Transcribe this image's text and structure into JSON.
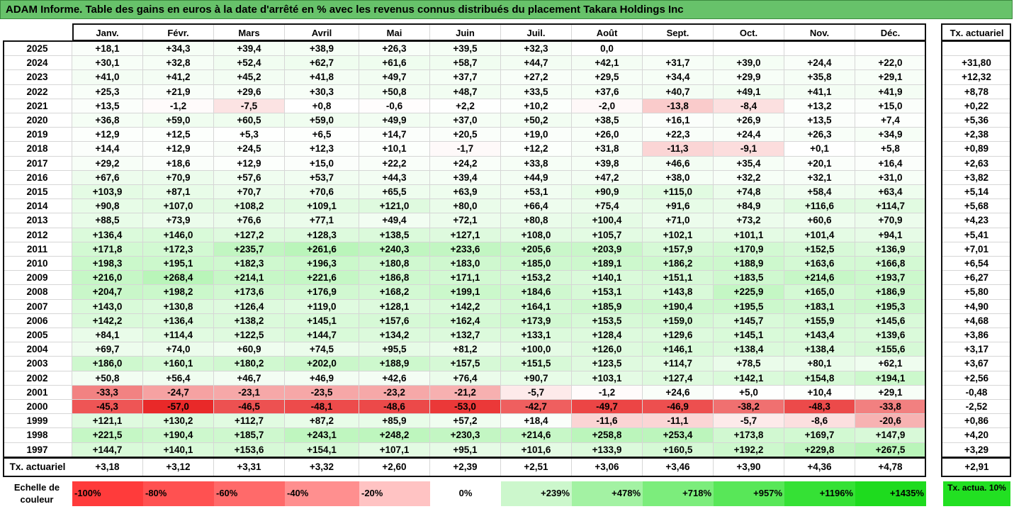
{
  "title": "ADAM Informe. Table des gains en euros à la date d'arrêté en % avec les revenus connus distribués du placement Takara Holdings Inc",
  "chart_data": {
    "type": "heatmap",
    "columns": [
      "Janv.",
      "Févr.",
      "Mars",
      "Avril",
      "Mai",
      "Juin",
      "Juil.",
      "Août",
      "Sept.",
      "Oct.",
      "Nov.",
      "Déc."
    ],
    "rate_header": "Tx. actuariel",
    "rows": [
      {
        "year": "2025",
        "values": [
          "+18,1",
          "+34,3",
          "+39,4",
          "+38,9",
          "+26,3",
          "+39,5",
          "+32,3",
          "0,0",
          "",
          "",
          "",
          ""
        ],
        "rate": ""
      },
      {
        "year": "2024",
        "values": [
          "+30,1",
          "+32,8",
          "+52,4",
          "+62,7",
          "+61,6",
          "+58,7",
          "+44,7",
          "+42,1",
          "+31,7",
          "+39,0",
          "+24,4",
          "+22,0"
        ],
        "rate": "+31,80"
      },
      {
        "year": "2023",
        "values": [
          "+41,0",
          "+41,2",
          "+45,2",
          "+41,8",
          "+49,7",
          "+37,7",
          "+27,2",
          "+29,5",
          "+34,4",
          "+29,9",
          "+35,8",
          "+29,1"
        ],
        "rate": "+12,32"
      },
      {
        "year": "2022",
        "values": [
          "+25,3",
          "+21,9",
          "+29,6",
          "+30,3",
          "+50,8",
          "+48,7",
          "+33,5",
          "+37,6",
          "+40,7",
          "+49,1",
          "+41,1",
          "+41,9"
        ],
        "rate": "+8,78"
      },
      {
        "year": "2021",
        "values": [
          "+13,5",
          "-1,2",
          "-7,5",
          "+0,8",
          "-0,6",
          "+2,2",
          "+10,2",
          "-2,0",
          "-13,8",
          "-8,4",
          "+13,2",
          "+15,0"
        ],
        "rate": "+0,22"
      },
      {
        "year": "2020",
        "values": [
          "+36,8",
          "+59,0",
          "+60,5",
          "+59,0",
          "+49,9",
          "+37,0",
          "+50,2",
          "+38,5",
          "+16,1",
          "+26,9",
          "+13,5",
          "+7,4"
        ],
        "rate": "+5,36"
      },
      {
        "year": "2019",
        "values": [
          "+12,9",
          "+12,5",
          "+5,3",
          "+6,5",
          "+14,7",
          "+20,5",
          "+19,0",
          "+26,0",
          "+22,3",
          "+24,4",
          "+26,3",
          "+34,9"
        ],
        "rate": "+2,38"
      },
      {
        "year": "2018",
        "values": [
          "+14,4",
          "+12,9",
          "+24,5",
          "+12,3",
          "+10,1",
          "-1,7",
          "+12,2",
          "+31,8",
          "-11,3",
          "-9,1",
          "+0,1",
          "+5,8"
        ],
        "rate": "+0,89"
      },
      {
        "year": "2017",
        "values": [
          "+29,2",
          "+18,6",
          "+12,9",
          "+15,0",
          "+22,2",
          "+24,2",
          "+33,8",
          "+39,8",
          "+46,6",
          "+35,4",
          "+20,1",
          "+16,4"
        ],
        "rate": "+2,63"
      },
      {
        "year": "2016",
        "values": [
          "+67,6",
          "+70,9",
          "+57,6",
          "+53,7",
          "+44,3",
          "+39,4",
          "+44,9",
          "+47,2",
          "+38,0",
          "+32,2",
          "+32,1",
          "+31,0"
        ],
        "rate": "+3,82"
      },
      {
        "year": "2015",
        "values": [
          "+103,9",
          "+87,1",
          "+70,7",
          "+70,6",
          "+65,5",
          "+63,9",
          "+53,1",
          "+90,9",
          "+115,0",
          "+74,8",
          "+58,4",
          "+63,4"
        ],
        "rate": "+5,14"
      },
      {
        "year": "2014",
        "values": [
          "+90,8",
          "+107,0",
          "+108,2",
          "+109,1",
          "+121,0",
          "+80,0",
          "+66,4",
          "+75,4",
          "+91,6",
          "+84,9",
          "+116,6",
          "+114,7"
        ],
        "rate": "+5,68"
      },
      {
        "year": "2013",
        "values": [
          "+88,5",
          "+73,9",
          "+76,6",
          "+77,1",
          "+49,4",
          "+72,1",
          "+80,8",
          "+100,4",
          "+71,0",
          "+73,2",
          "+60,6",
          "+70,9"
        ],
        "rate": "+4,23"
      },
      {
        "year": "2012",
        "values": [
          "+136,4",
          "+146,0",
          "+127,2",
          "+128,3",
          "+138,5",
          "+127,1",
          "+108,0",
          "+105,7",
          "+102,1",
          "+101,1",
          "+101,4",
          "+94,1"
        ],
        "rate": "+5,41"
      },
      {
        "year": "2011",
        "values": [
          "+171,8",
          "+172,3",
          "+235,7",
          "+261,6",
          "+240,3",
          "+233,6",
          "+205,6",
          "+203,9",
          "+157,9",
          "+170,9",
          "+152,5",
          "+136,9"
        ],
        "rate": "+7,01"
      },
      {
        "year": "2010",
        "values": [
          "+198,3",
          "+195,1",
          "+182,3",
          "+196,3",
          "+180,8",
          "+183,0",
          "+185,0",
          "+189,1",
          "+186,2",
          "+188,9",
          "+163,6",
          "+166,8"
        ],
        "rate": "+6,54"
      },
      {
        "year": "2009",
        "values": [
          "+216,0",
          "+268,4",
          "+214,1",
          "+221,6",
          "+186,8",
          "+171,1",
          "+153,2",
          "+140,1",
          "+151,1",
          "+183,5",
          "+214,6",
          "+193,7"
        ],
        "rate": "+6,27"
      },
      {
        "year": "2008",
        "values": [
          "+204,7",
          "+198,2",
          "+173,6",
          "+176,9",
          "+168,2",
          "+199,1",
          "+184,6",
          "+153,1",
          "+143,8",
          "+225,9",
          "+165,0",
          "+186,9"
        ],
        "rate": "+5,80"
      },
      {
        "year": "2007",
        "values": [
          "+143,0",
          "+130,8",
          "+126,4",
          "+119,0",
          "+128,1",
          "+142,2",
          "+164,1",
          "+185,9",
          "+190,4",
          "+195,5",
          "+183,1",
          "+195,3"
        ],
        "rate": "+4,90"
      },
      {
        "year": "2006",
        "values": [
          "+142,2",
          "+136,4",
          "+138,2",
          "+145,1",
          "+157,6",
          "+162,4",
          "+173,9",
          "+153,5",
          "+159,0",
          "+145,7",
          "+155,9",
          "+145,6"
        ],
        "rate": "+4,68"
      },
      {
        "year": "2005",
        "values": [
          "+84,1",
          "+114,4",
          "+122,5",
          "+144,7",
          "+134,2",
          "+132,7",
          "+133,1",
          "+128,4",
          "+129,6",
          "+145,1",
          "+143,4",
          "+139,6"
        ],
        "rate": "+3,86"
      },
      {
        "year": "2004",
        "values": [
          "+69,7",
          "+74,0",
          "+60,9",
          "+74,5",
          "+95,5",
          "+81,2",
          "+100,0",
          "+126,0",
          "+146,1",
          "+138,4",
          "+138,4",
          "+155,6"
        ],
        "rate": "+3,17"
      },
      {
        "year": "2003",
        "values": [
          "+186,0",
          "+160,1",
          "+180,2",
          "+202,0",
          "+188,9",
          "+157,5",
          "+151,5",
          "+123,5",
          "+114,7",
          "+78,5",
          "+80,1",
          "+62,1"
        ],
        "rate": "+3,67"
      },
      {
        "year": "2002",
        "values": [
          "+50,8",
          "+56,4",
          "+46,7",
          "+46,9",
          "+42,6",
          "+76,4",
          "+90,7",
          "+103,1",
          "+127,4",
          "+142,1",
          "+154,8",
          "+194,1"
        ],
        "rate": "+2,56"
      },
      {
        "year": "2001",
        "values": [
          "-33,3",
          "-24,7",
          "-23,1",
          "-23,5",
          "-23,2",
          "-21,2",
          "-5,7",
          "-1,2",
          "+24,6",
          "+5,0",
          "+10,4",
          "+29,1"
        ],
        "rate": "-0,48"
      },
      {
        "year": "2000",
        "values": [
          "-45,3",
          "-57,0",
          "-46,5",
          "-48,1",
          "-48,6",
          "-53,0",
          "-42,7",
          "-49,7",
          "-46,9",
          "-38,2",
          "-48,3",
          "-33,8"
        ],
        "rate": "-2,52"
      },
      {
        "year": "1999",
        "values": [
          "+121,1",
          "+130,2",
          "+112,7",
          "+87,2",
          "+85,9",
          "+57,2",
          "+18,4",
          "-11,6",
          "-11,1",
          "-5,7",
          "-8,6",
          "-20,6"
        ],
        "rate": "+0,86"
      },
      {
        "year": "1998",
        "values": [
          "+221,5",
          "+190,4",
          "+185,7",
          "+243,1",
          "+248,2",
          "+230,3",
          "+214,6",
          "+258,8",
          "+253,4",
          "+173,8",
          "+169,7",
          "+147,9"
        ],
        "rate": "+4,20"
      },
      {
        "year": "1997",
        "values": [
          "+144,7",
          "+140,1",
          "+153,6",
          "+154,1",
          "+107,1",
          "+95,1",
          "+101,6",
          "+133,9",
          "+160,5",
          "+192,2",
          "+229,8",
          "+267,5"
        ],
        "rate": "+3,29"
      }
    ],
    "summary_row": {
      "label": "Tx. actuariel",
      "values": [
        "+3,18",
        "+3,12",
        "+3,31",
        "+3,32",
        "+2,60",
        "+2,39",
        "+2,51",
        "+3,06",
        "+3,46",
        "+3,90",
        "+4,36",
        "+4,78"
      ],
      "rate": "+2,91"
    },
    "color_scale": {
      "label": "Echelle de couleur",
      "steps": [
        {
          "text": "-100%",
          "color": "#ff3b3b",
          "align": "left"
        },
        {
          "text": "-80%",
          "color": "#ff5151",
          "align": "left"
        },
        {
          "text": "-60%",
          "color": "#ff6a6a",
          "align": "left"
        },
        {
          "text": "-40%",
          "color": "#ff8f8f",
          "align": "left"
        },
        {
          "text": "-20%",
          "color": "#ffc3c3",
          "align": "left"
        },
        {
          "text": "0%",
          "color": "#ffffff",
          "align": "center"
        },
        {
          "text": "+239%",
          "color": "#ccf7cc",
          "align": "right"
        },
        {
          "text": "+478%",
          "color": "#a3f2a3",
          "align": "right"
        },
        {
          "text": "+718%",
          "color": "#7ced7c",
          "align": "right"
        },
        {
          "text": "+957%",
          "color": "#58e758",
          "align": "right"
        },
        {
          "text": "+1196%",
          "color": "#35e135",
          "align": "right"
        },
        {
          "text": "+1435%",
          "color": "#1edb1e",
          "align": "right"
        }
      ],
      "rate_chip": "Tx. actua. 10%",
      "rate_chip_color": "#22e022"
    },
    "colors": {
      "title_bg": "#67c26a",
      "negative_max": "#e80000",
      "positive_max": "#1edb1e"
    }
  }
}
